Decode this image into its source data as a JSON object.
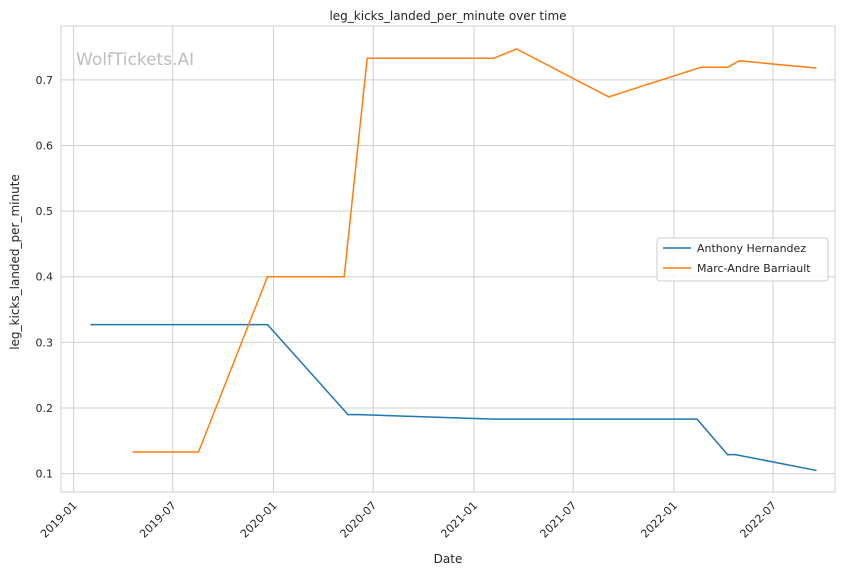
{
  "chart_data": {
    "type": "line",
    "title": "leg_kicks_landed_per_minute over time",
    "xlabel": "Date",
    "ylabel": "leg_kicks_landed_per_minute",
    "watermark": "WolfTickets.AI",
    "xlim": [
      "2018-12-09",
      "2022-10-22"
    ],
    "ylim": [
      0.072,
      0.782
    ],
    "x_ticks": [
      "2019-01",
      "2019-07",
      "2020-01",
      "2020-07",
      "2021-01",
      "2021-07",
      "2022-01",
      "2022-07"
    ],
    "y_ticks": [
      "0.1",
      "0.2",
      "0.3",
      "0.4",
      "0.5",
      "0.6",
      "0.7"
    ],
    "grid": true,
    "legend_position": "center-right",
    "series": [
      {
        "name": "Anthony Hernandez",
        "color": "#1f77b4",
        "points": [
          [
            "2019-02-02",
            0.327
          ],
          [
            "2019-12-21",
            0.327
          ],
          [
            "2020-05-16",
            0.19
          ],
          [
            "2020-06-06",
            0.19
          ],
          [
            "2021-02-06",
            0.183
          ],
          [
            "2022-02-12",
            0.183
          ],
          [
            "2022-04-09",
            0.129
          ],
          [
            "2022-04-23",
            0.129
          ],
          [
            "2022-09-17",
            0.105
          ]
        ]
      },
      {
        "name": "Marc-Andre Barriault",
        "color": "#ff7f0e",
        "points": [
          [
            "2019-04-20",
            0.133
          ],
          [
            "2019-08-17",
            0.133
          ],
          [
            "2019-12-21",
            0.4
          ],
          [
            "2020-05-09",
            0.4
          ],
          [
            "2020-06-20",
            0.733
          ],
          [
            "2021-02-06",
            0.733
          ],
          [
            "2021-03-20",
            0.747
          ],
          [
            "2021-09-04",
            0.674
          ],
          [
            "2022-02-19",
            0.719
          ],
          [
            "2022-04-09",
            0.719
          ],
          [
            "2022-04-30",
            0.729
          ],
          [
            "2022-09-17",
            0.718
          ]
        ]
      }
    ]
  }
}
